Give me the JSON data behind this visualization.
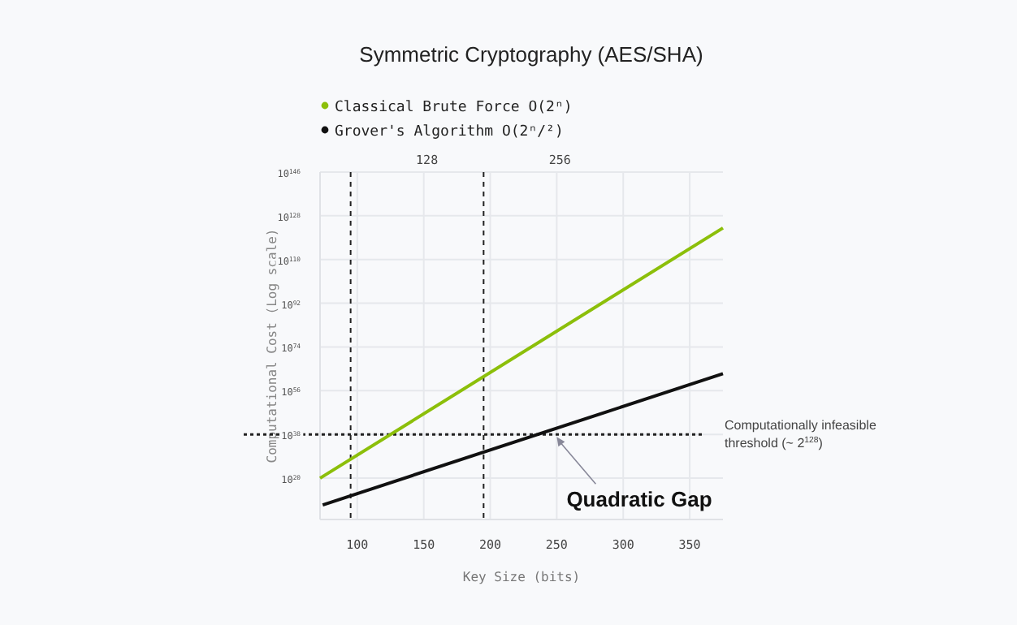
{
  "chart_data": {
    "type": "line",
    "title": "Symmetric Cryptography (AES/SHA)",
    "xlabel": "Key Size (bits)",
    "ylabel": "Computational Cost (Log scale)",
    "series": [
      {
        "name": "Classical Brute Force O(2ⁿ)",
        "color": "#8cbf0a",
        "x": [
          72,
          375
        ],
        "values": [
          1e+20,
          1e+123
        ]
      },
      {
        "name": "Grover's Algorithm O(2ⁿ/²)",
        "color": "#111111",
        "x": [
          74,
          375
        ],
        "values": [
          1000000000.0,
          1e+63
        ]
      }
    ],
    "log": "y",
    "xlim": [
      72,
      375
    ],
    "xticks": [
      100,
      150,
      200,
      250,
      300,
      350
    ],
    "ylim": [
      1000.0,
      1e+146
    ],
    "yticks": [
      {
        "value": 1e+20,
        "label": "10$^{20}$"
      },
      {
        "value": 1e+38,
        "label": "10$^{38}$"
      },
      {
        "value": 1e+56,
        "label": "10$^{56}$"
      },
      {
        "value": 1e+74,
        "label": "10$^{74}$"
      },
      {
        "value": 1e+92,
        "label": "10$^{92}$"
      },
      {
        "value": 1e+110,
        "label": "10$^{110}$"
      },
      {
        "value": 1e+128,
        "label": "10$^{128}$"
      },
      {
        "value": 1e+146,
        "label": "10$^{146}$"
      }
    ],
    "ref_lines": [
      {
        "axis": "x",
        "value": 95,
        "line_style": "dashed",
        "color": "#222222"
      },
      {
        "axis": "x",
        "value": 195,
        "line_style": "dashed",
        "color": "#222222"
      },
      {
        "axis": "y",
        "value": 1e+38,
        "label": "Computationally infeasible threshold (~ 2$^{128}$)",
        "line_style": "dotted",
        "color": "#222222"
      }
    ],
    "annotations": [
      "128",
      "256",
      {
        "text": "Quadratic Gap",
        "x": 250,
        "y": 1e+37
      }
    ],
    "grid": true,
    "legend": "top left",
    "line_style": "solid",
    "marker": "none"
  }
}
